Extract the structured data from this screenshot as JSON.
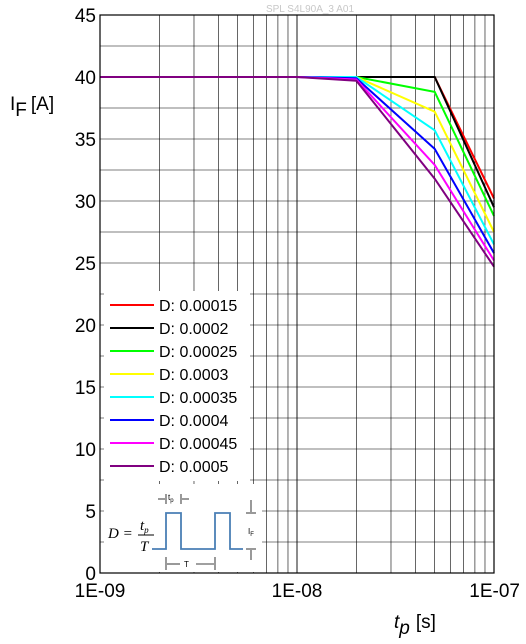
{
  "watermark": "SPL S4L90A_3 A01",
  "chart_data": {
    "type": "line",
    "xscale": "log",
    "xlim": [
      1e-09,
      1e-07
    ],
    "ylim": [
      0,
      45
    ],
    "xticks": [
      "1E-09",
      "1E-08",
      "1E-07"
    ],
    "yticks": [
      "0",
      "5",
      "10",
      "15",
      "20",
      "25",
      "30",
      "35",
      "40",
      "45"
    ],
    "ylabel": {
      "main": "I",
      "sub": "F",
      "unit": "[A]"
    },
    "xlabel": {
      "main": "t",
      "sub": "p",
      "unit": "[s]"
    },
    "grid": true,
    "legend_position": "lower-left",
    "series": [
      {
        "name": "D: 0.00015",
        "color": "#ff0000",
        "x": [
          1e-09,
          1e-08,
          2e-08,
          5e-08,
          1e-07
        ],
        "y": [
          40,
          40,
          40,
          40,
          30.2
        ]
      },
      {
        "name": "D: 0.0002",
        "color": "#000000",
        "x": [
          1e-09,
          1e-08,
          2e-08,
          5e-08,
          1e-07
        ],
        "y": [
          40,
          40,
          40,
          40,
          29.5
        ]
      },
      {
        "name": "D: 0.00025",
        "color": "#00ff00",
        "x": [
          1e-09,
          1e-08,
          2e-08,
          5e-08,
          1e-07
        ],
        "y": [
          40,
          40,
          40,
          38.8,
          28.8
        ]
      },
      {
        "name": "D: 0.0003",
        "color": "#ffff00",
        "x": [
          1e-09,
          1e-08,
          2e-08,
          5e-08,
          1e-07
        ],
        "y": [
          40,
          40,
          40,
          37.2,
          27.5
        ]
      },
      {
        "name": "D: 0.00035",
        "color": "#00ffff",
        "x": [
          1e-09,
          1e-08,
          2e-08,
          5e-08,
          1e-07
        ],
        "y": [
          40,
          40,
          40,
          35.7,
          26.5
        ]
      },
      {
        "name": "D: 0.0004",
        "color": "#0000ff",
        "x": [
          1e-09,
          1e-08,
          2e-08,
          5e-08,
          1e-07
        ],
        "y": [
          40,
          40,
          39.9,
          34.2,
          25.8
        ]
      },
      {
        "name": "D: 0.00045",
        "color": "#ff00ff",
        "x": [
          1e-09,
          1e-08,
          2e-08,
          5e-08,
          1e-07
        ],
        "y": [
          40,
          40,
          39.8,
          32.9,
          25.2
        ]
      },
      {
        "name": "D: 0.0005",
        "color": "#800080",
        "x": [
          1e-09,
          1e-08,
          2e-08,
          5e-08,
          1e-07
        ],
        "y": [
          40,
          40,
          39.7,
          31.8,
          24.7
        ]
      }
    ],
    "inset": {
      "formula_lhs": "D =",
      "numerator": "t",
      "numerator_sub": "p",
      "denominator": "T",
      "tp_label": "t",
      "tp_sub": "p",
      "period_label": "T",
      "amplitude_label": "I",
      "amplitude_sub": "F",
      "pulse_color": "#4a7fb5"
    }
  }
}
